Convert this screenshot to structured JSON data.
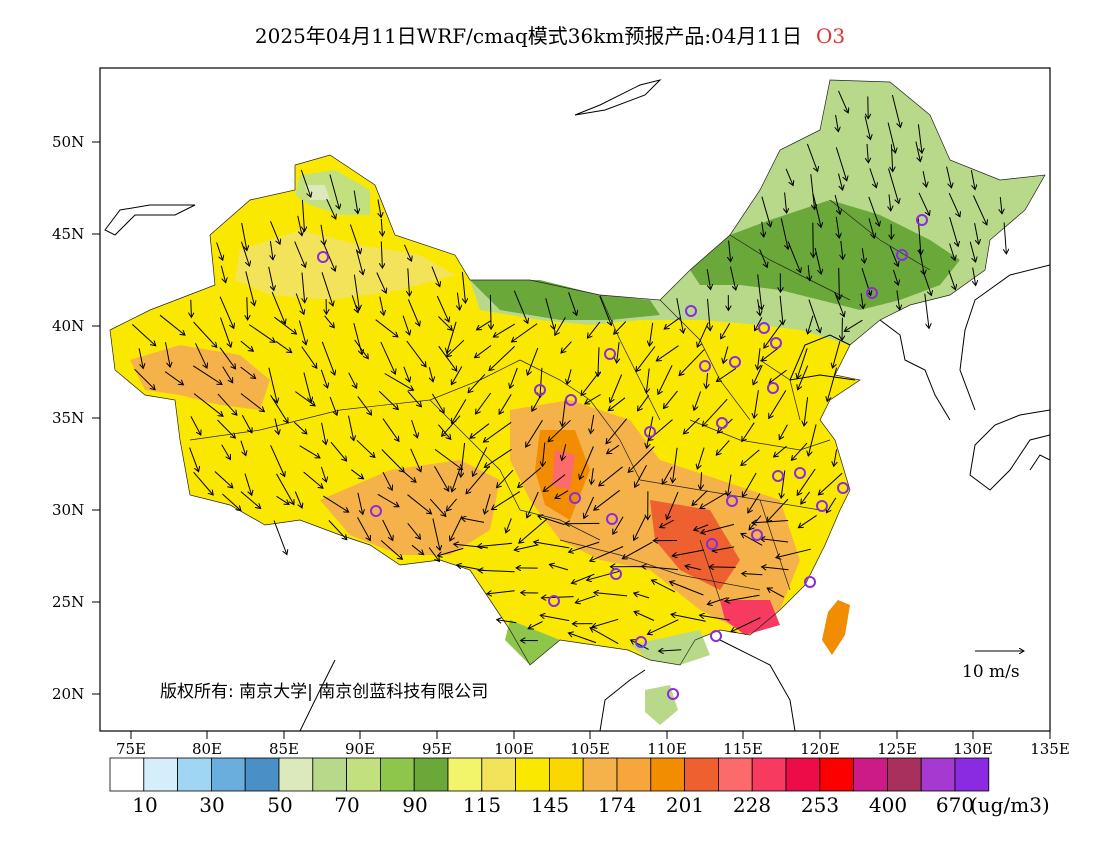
{
  "title": {
    "text": "2025年04月11日WRF/cmaq模式36km预报产品:04月11日",
    "pollutant": "O3",
    "pollutant_color": "#e03030"
  },
  "map": {
    "lon_range": [
      73,
      135
    ],
    "lat_range": [
      18,
      54
    ],
    "lat_ticks": [
      "20N",
      "25N",
      "30N",
      "35N",
      "40N",
      "45N",
      "50N"
    ],
    "lon_ticks": [
      "75E",
      "80E",
      "85E",
      "90E",
      "95E",
      "100E",
      "105E",
      "110E",
      "115E",
      "120E",
      "125E",
      "130E",
      "135E"
    ],
    "wind_field": "northwesterly-to-northerly arrows",
    "station_marker_color": "#8a2be2"
  },
  "copyright": "版权所有: 南京大学| 南京创蓝科技有限公司",
  "wind_scale": {
    "label": "10 m/s"
  },
  "legend": {
    "unit": "(ug/m3)",
    "colors": [
      "#ffffff",
      "#d4eefb",
      "#9ed6f4",
      "#6aaede",
      "#4a8fc6",
      "#dbe9bc",
      "#b9d98a",
      "#c3e07e",
      "#8dc64a",
      "#6aa83a",
      "#f2f56c",
      "#f3e35a",
      "#fbe800",
      "#fbd700",
      "#f6b24a",
      "#f6a63a",
      "#f28c00",
      "#ee6030",
      "#fb6b6b",
      "#f63a60",
      "#ee0c48",
      "#fc0000",
      "#cc1a86",
      "#a8305c",
      "#a43acf",
      "#8a2be2"
    ],
    "labels": [
      "10",
      "30",
      "50",
      "70",
      "90",
      "115",
      "145",
      "174",
      "201",
      "228",
      "253",
      "400",
      "670"
    ]
  }
}
